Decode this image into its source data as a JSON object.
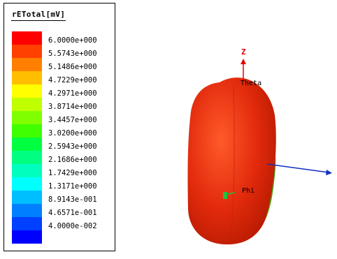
{
  "legend": {
    "title": "rETotal[mV]",
    "entries": [
      {
        "value": "6.0000e+000",
        "color": "#ff0000"
      },
      {
        "value": "5.5743e+000",
        "color": "#ff4000"
      },
      {
        "value": "5.1486e+000",
        "color": "#ff8000"
      },
      {
        "value": "4.7229e+000",
        "color": "#ffbf00"
      },
      {
        "value": "4.2971e+000",
        "color": "#ffff00"
      },
      {
        "value": "3.8714e+000",
        "color": "#bfff00"
      },
      {
        "value": "3.4457e+000",
        "color": "#80ff00"
      },
      {
        "value": "3.0200e+000",
        "color": "#40ff00"
      },
      {
        "value": "2.5943e+000",
        "color": "#00ff40"
      },
      {
        "value": "2.1686e+000",
        "color": "#00ff80"
      },
      {
        "value": "1.7429e+000",
        "color": "#00ffbf"
      },
      {
        "value": "1.3171e+000",
        "color": "#00ffff"
      },
      {
        "value": "8.9143e-001",
        "color": "#00bfff"
      },
      {
        "value": "4.6571e-001",
        "color": "#0080ff"
      },
      {
        "value": "4.0000e-002",
        "color": "#0040ff"
      },
      {
        "value": "",
        "color": "#0000ff"
      }
    ]
  },
  "axes": {
    "z_label": "Z",
    "theta_label": "Theta",
    "phi_label": "Phi"
  },
  "colors": {
    "pattern_main": "#e83010",
    "pattern_highlight": "#ff6a3a",
    "pattern_edge": "#60c020",
    "z_axis": "#e00000",
    "x_axis": "#1030c0",
    "phi_marker": "#20c040"
  }
}
